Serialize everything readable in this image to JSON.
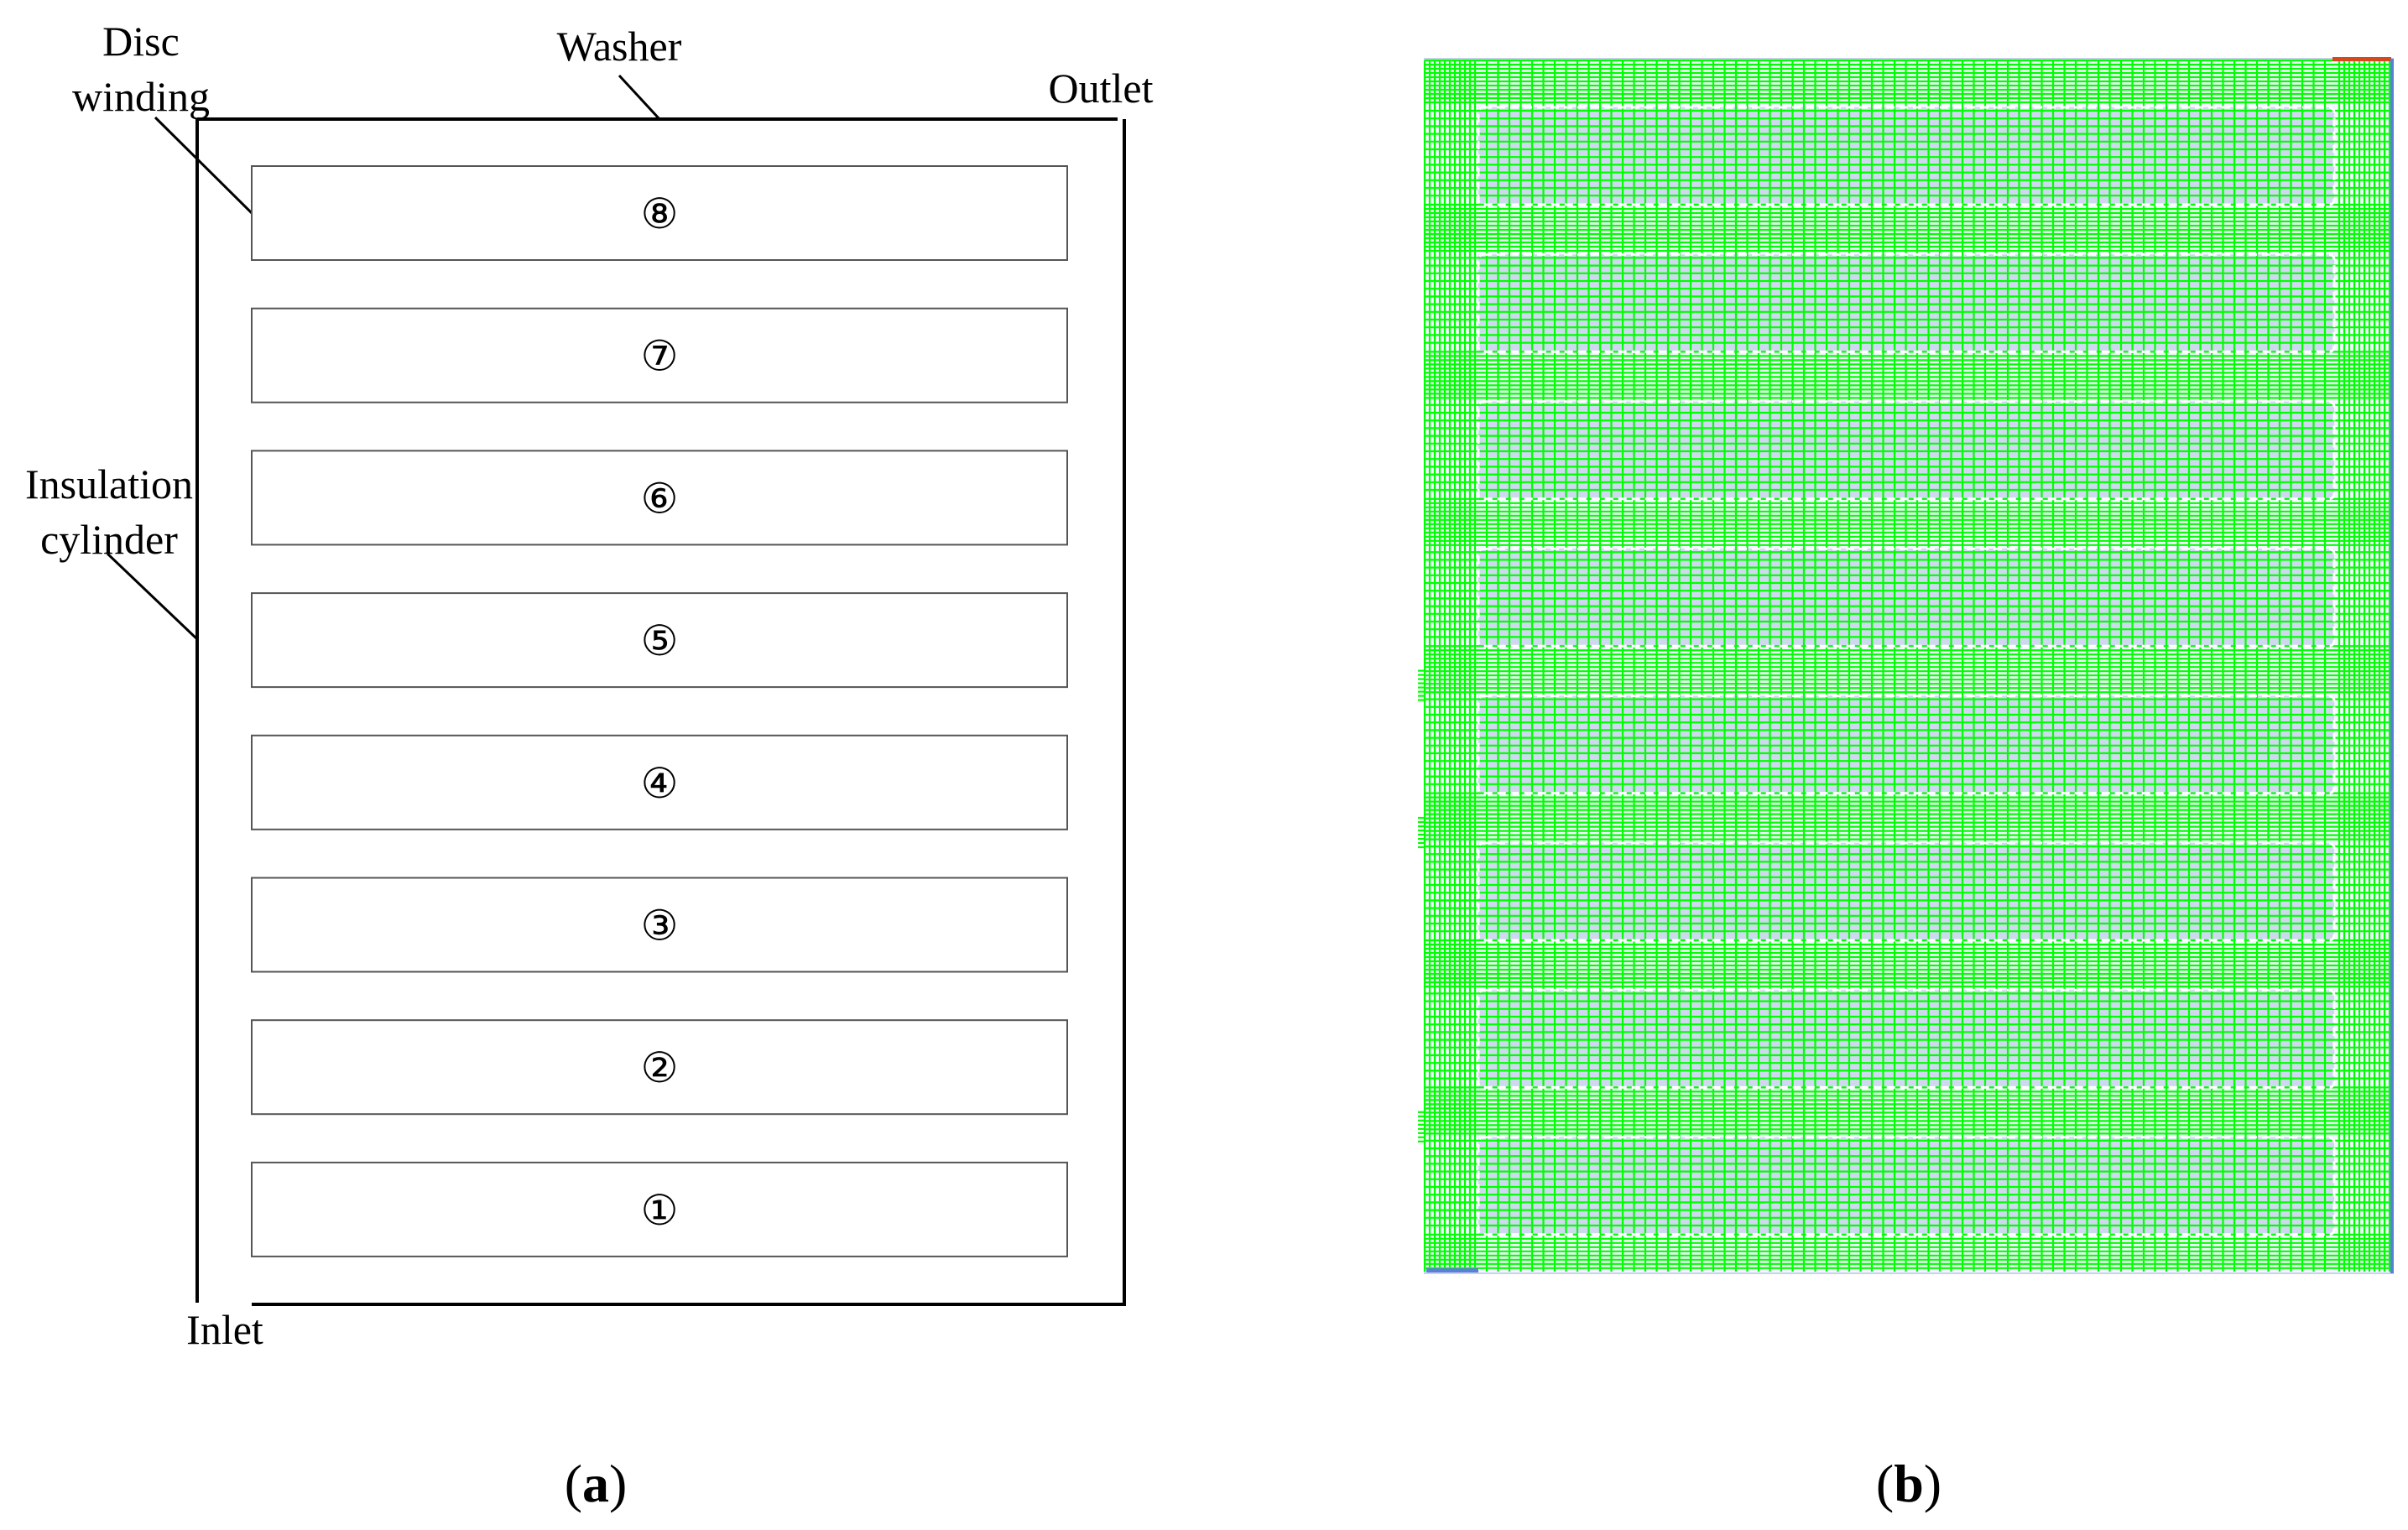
{
  "panel_a": {
    "labels": {
      "disc_line1": "Disc",
      "disc_line2": "winding",
      "washer": "Washer",
      "outlet": "Outlet",
      "insulation_line1": "Insulation",
      "insulation_line2": "cylinder",
      "inlet": "Inlet"
    },
    "discs": [
      "⑧",
      "⑦",
      "⑥",
      "⑤",
      "④",
      "③",
      "②",
      "①"
    ]
  },
  "panel_b": {
    "mesh_color": "#00ff00",
    "fluid_color": "#c8d2ec",
    "boundary_color": "#5b7fd6",
    "outlet_marker_color": "#d24a1e"
  },
  "captions": {
    "a_open": "(",
    "a_letter": "a",
    "a_close": ")",
    "b_open": "(",
    "b_letter": "b",
    "b_close": ")"
  }
}
